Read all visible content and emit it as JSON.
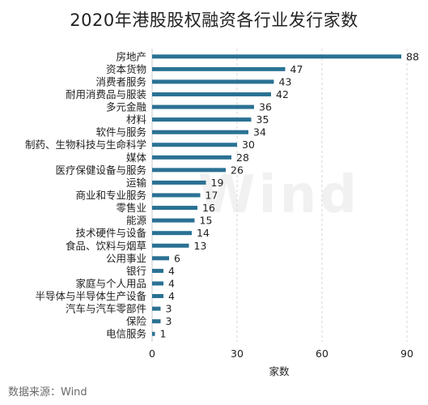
{
  "title": "2020年港股股权融资各行业发行家数",
  "source": "数据来源：Wind",
  "watermark": "Wind",
  "colors": {
    "bar": "#2a7193",
    "grid": "#d6d6d6",
    "axis": "#c8c8c8"
  },
  "chart_data": {
    "type": "bar",
    "orientation": "horizontal",
    "title": "2020年港股股权融资各行业发行家数",
    "xlabel": "家数",
    "ylabel": "",
    "xlim": [
      0,
      90
    ],
    "xticks": [
      0,
      30,
      60,
      90
    ],
    "grid": "vertical-dashed",
    "categories": [
      "房地产",
      "资本货物",
      "消费者服务",
      "耐用消费品与服装",
      "多元金融",
      "材料",
      "软件与服务",
      "制药、生物科技与生命科学",
      "媒体",
      "医疗保健设备与服务",
      "运输",
      "商业和专业服务",
      "零售业",
      "能源",
      "技术硬件与设备",
      "食品、饮料与烟草",
      "公用事业",
      "银行",
      "家庭与个人用品",
      "半导体与半导体生产设备",
      "汽车与汽车零部件",
      "保险",
      "电信服务"
    ],
    "values": [
      88,
      47,
      43,
      42,
      36,
      35,
      34,
      30,
      28,
      26,
      19,
      17,
      16,
      15,
      14,
      13,
      6,
      4,
      4,
      4,
      3,
      3,
      1
    ]
  }
}
